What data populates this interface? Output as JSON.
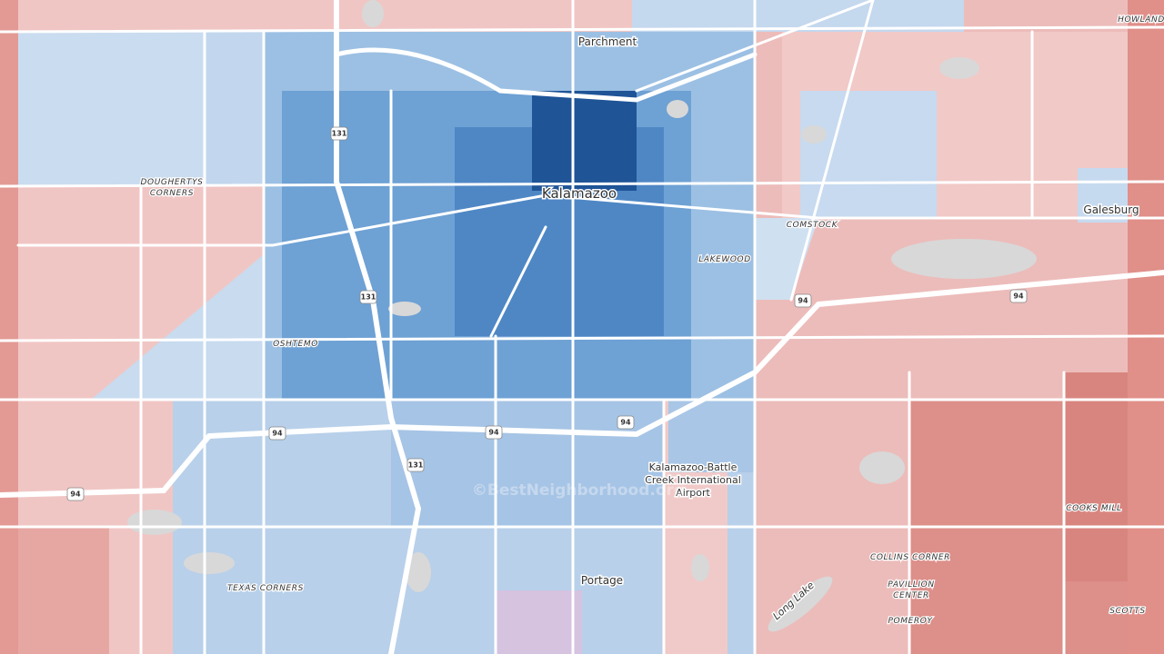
{
  "places": [
    {
      "name": "Parchment"
    },
    {
      "name": "HOWLAND"
    },
    {
      "lines": [
        "DOUGHERTYS",
        "CORNERS"
      ]
    },
    {
      "name": "Kalamazoo"
    },
    {
      "name": "COMSTOCK"
    },
    {
      "name": "Galesburg"
    },
    {
      "name": "LAKEWOOD"
    },
    {
      "name": "OSHTEMO"
    },
    {
      "lines": [
        "Kalamazoo-Battle",
        "Creek International",
        "Airport"
      ]
    },
    {
      "name": "COOKS MILL"
    },
    {
      "name": "COLLINS CORNER"
    },
    {
      "lines": [
        "PAVILLION",
        "CENTER"
      ]
    },
    {
      "name": "TEXAS CORNERS"
    },
    {
      "name": "Portage"
    },
    {
      "name": "POMEROY"
    },
    {
      "name": "SCOTTS"
    },
    {
      "name": "Long Lake"
    }
  ],
  "shields": [
    "131",
    "131",
    "131",
    "94",
    "94",
    "94",
    "94",
    "94",
    "94"
  ],
  "watermark": "©BestNeighborhood.org"
}
